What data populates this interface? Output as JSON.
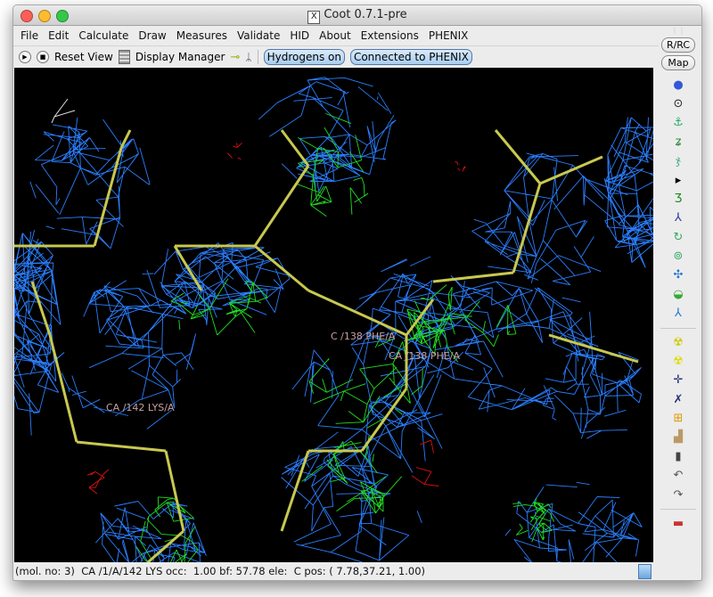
{
  "window": {
    "title": "Coot 0.7.1-pre"
  },
  "menu": [
    "File",
    "Edit",
    "Calculate",
    "Draw",
    "Measures",
    "Validate",
    "HID",
    "About",
    "Extensions",
    "PHENIX"
  ],
  "toolbar": {
    "reset_view": "Reset View",
    "display_manager": "Display Manager",
    "hydrogens": "Hydrogens on",
    "phenix": "Connected to PHENIX"
  },
  "right_toolbar": {
    "rrc": "R/RC",
    "map": "Map",
    "icons": [
      "sphere-refine-icon",
      "rotate-translate-icon",
      "anchor-icon",
      "rigid-body-icon",
      "ligand-fit-icon",
      "arrow-icon",
      "real-space-refine-icon",
      "regularize-icon",
      "rotamer-icon",
      "torsion-icon",
      "flip-peptide-icon",
      "side-chain-icon",
      "auto-fit-rotamer-icon",
      "mutate-icon",
      "radiation-icon",
      "add-atom-icon",
      "place-atom-icon",
      "add-terminal-icon",
      "clear-icon",
      "delete-icon",
      "undo-icon",
      "redo-icon",
      "flag-icon"
    ]
  },
  "viewport": {
    "labels": [
      "C /138 PHE/A",
      "CA /138 PHE/A",
      "CA /142 LYS/A"
    ],
    "colors": {
      "map": "#2a7fff",
      "diff_map_pos": "#22dd22",
      "diff_map_neg": "#dd1111",
      "bonds": "#c8c850"
    }
  },
  "status": {
    "text": "(mol. no: 3)  CA /1/A/142 LYS occ:  1.00 bf: 57.78 ele:  C pos: ( 7.78,37.21, 1.00)"
  }
}
